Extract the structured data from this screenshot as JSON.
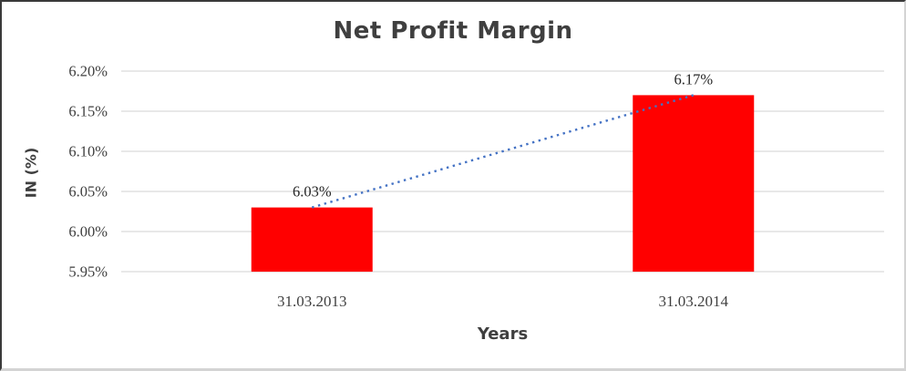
{
  "chart_data": {
    "type": "bar",
    "title": "Net Profit Margin",
    "xlabel": "Years",
    "ylabel": "IN (%)",
    "categories": [
      "31.03.2013",
      "31.03.2014"
    ],
    "values": [
      6.03,
      6.17
    ],
    "data_labels": [
      "6.03%",
      "6.17%"
    ],
    "ylim": [
      5.95,
      6.2
    ],
    "yticks": [
      6.2,
      6.15,
      6.1,
      6.05,
      6.0,
      5.95
    ],
    "ytick_labels": [
      "6.20%",
      "6.15%",
      "6.10%",
      "6.05%",
      "6.00%",
      "5.95%"
    ],
    "grid": true,
    "legend": false,
    "colors": {
      "bar": "#FF0000",
      "trendline": "#4472C4",
      "gridline": "#D9D9D9",
      "tick_text": "#3F3F3F",
      "data_label_text": "#262626",
      "title_text": "#3F3F3F"
    },
    "trendline": {
      "style": "dotted",
      "from_value": 6.03,
      "to_value": 6.17
    }
  }
}
